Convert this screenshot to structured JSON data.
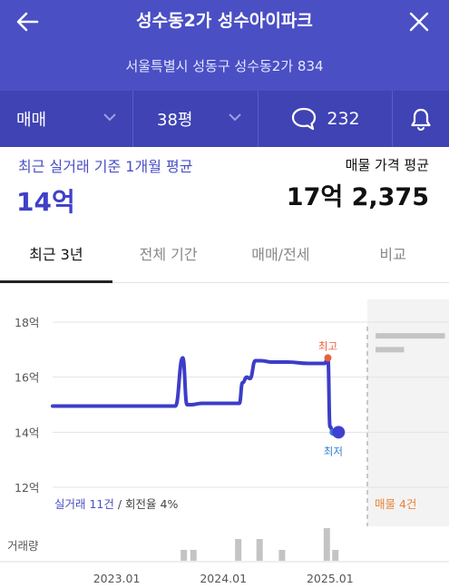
{
  "header": {
    "title": "성수동2가 성수아이파크",
    "address": "서울특별시 성동구 성수동2가 834",
    "back_icon": "arrow-left-icon",
    "close_icon": "close-icon"
  },
  "filters": {
    "trade_type": "매매",
    "size": "38평",
    "comment_count": "232"
  },
  "summary": {
    "recent_label": "최근 실거래 기준 1개월 평균",
    "recent_value": "14억",
    "listing_label": "매물 가격 평균",
    "listing_value": "17억 2,375"
  },
  "tabs": [
    {
      "label": "최근 3년",
      "active": true
    },
    {
      "label": "전체 기간",
      "active": false
    },
    {
      "label": "매매/전세",
      "active": false
    },
    {
      "label": "비교",
      "active": false
    }
  ],
  "colors": {
    "accent": "#4a4fc4",
    "filter_bg": "#3f43b3",
    "line": "#3d3dc8",
    "high_marker": "#e8613c",
    "low_marker": "#2e7fd8",
    "listing_text": "#e8843c"
  },
  "chart_data": {
    "type": "line",
    "y_ticks": [
      "18억",
      "16억",
      "14억",
      "12억"
    ],
    "y_tick_values": [
      18,
      16,
      14,
      12
    ],
    "ylim": [
      12,
      18
    ],
    "x_ticks": [
      "2023.01",
      "2024.01",
      "2025.01"
    ],
    "x_tick_values": [
      2023.0,
      2024.0,
      2025.0
    ],
    "xlim": [
      2022.4,
      2025.35
    ],
    "series": [
      {
        "x": [
          2022.4,
          2023.0,
          2023.55,
          2023.62,
          2023.66,
          2023.7,
          2023.8,
          2024.0,
          2024.15,
          2024.18,
          2024.22,
          2024.25,
          2024.3,
          2024.35,
          2024.45,
          2024.6,
          2024.8,
          2024.95,
          2024.98,
          2025.0,
          2025.03,
          2025.06,
          2025.08
        ],
        "y": [
          14.95,
          14.95,
          14.95,
          16.7,
          15.0,
          15.0,
          15.05,
          15.05,
          15.05,
          15.8,
          16.0,
          15.95,
          16.6,
          16.6,
          16.55,
          16.55,
          16.5,
          16.5,
          16.7,
          14.2,
          14.0,
          14.0,
          14.0
        ]
      }
    ],
    "high_label": "최고",
    "high_point": {
      "x": 2024.98,
      "y": 16.7
    },
    "low_label": "최저",
    "low_point": {
      "x": 2025.03,
      "y": 14.0
    },
    "current_point": {
      "x": 2025.08,
      "y": 14.0
    },
    "deal_summary": "실거래 11건",
    "turnover": "/ 회전율 4%",
    "listing_count": "매물 4건",
    "listing_bars": [
      {
        "x0": 0.1,
        "x1": 0.95,
        "y": 17.5
      },
      {
        "x0": 0.1,
        "x1": 0.45,
        "y": 17.0
      }
    ],
    "volume_label": "거래량",
    "volume": [
      {
        "x": 2023.63,
        "v": 1
      },
      {
        "x": 2023.72,
        "v": 1
      },
      {
        "x": 2024.14,
        "v": 2
      },
      {
        "x": 2024.34,
        "v": 2
      },
      {
        "x": 2024.55,
        "v": 1
      },
      {
        "x": 2024.97,
        "v": 3
      },
      {
        "x": 2025.05,
        "v": 1
      }
    ]
  }
}
